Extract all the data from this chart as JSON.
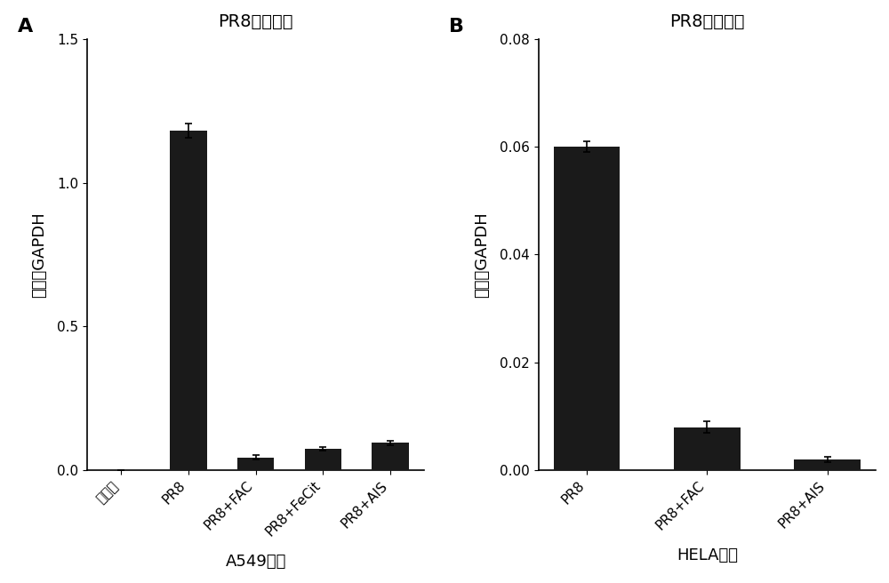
{
  "panel_A": {
    "title": "PR8病毒拷贝",
    "categories": [
      "无感染",
      "PR8",
      "PR8+FAC",
      "PR8+FeCit",
      "PR8+AIS"
    ],
    "values": [
      0.0,
      1.18,
      0.045,
      0.075,
      0.095
    ],
    "errors": [
      0.0,
      0.025,
      0.008,
      0.006,
      0.007
    ],
    "ylabel": "相对于GAPDH",
    "xlabel": "A549细胞",
    "ylim": [
      0,
      1.5
    ],
    "yticks": [
      0.0,
      0.5,
      1.0,
      1.5
    ]
  },
  "panel_B": {
    "title": "PR8病毒拷贝",
    "categories": [
      "PR8",
      "PR8+FAC",
      "PR8+AIS"
    ],
    "values": [
      0.06,
      0.008,
      0.002
    ],
    "errors": [
      0.001,
      0.001,
      0.0005
    ],
    "ylabel": "相对于GAPDH",
    "xlabel": "HELA细胞",
    "ylim": [
      0,
      0.08
    ],
    "yticks": [
      0.0,
      0.02,
      0.04,
      0.06,
      0.08
    ]
  },
  "bar_color": "#1a1a1a",
  "bar_width": 0.55,
  "background_color": "#ffffff",
  "label_fontsize": 13,
  "title_fontsize": 14,
  "tick_fontsize": 11,
  "panel_label_fontsize": 16
}
